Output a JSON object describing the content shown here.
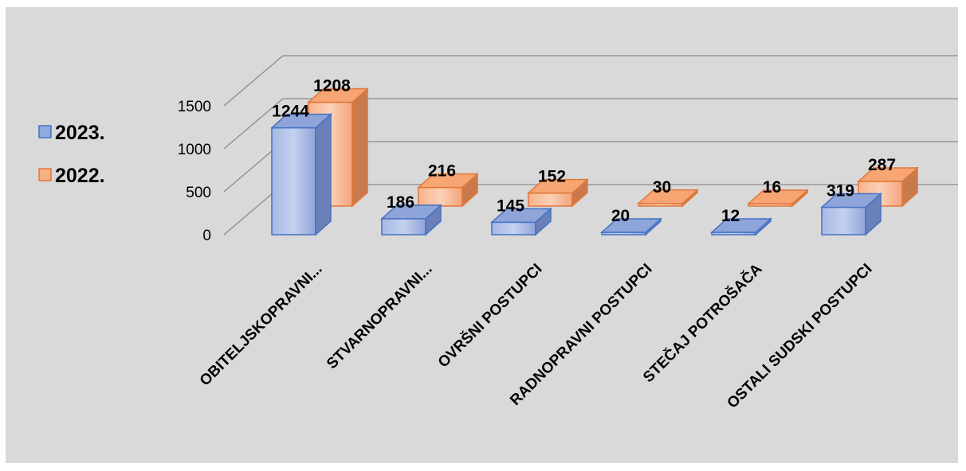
{
  "chart_data": {
    "type": "bar",
    "subtype": "3d-clustered-column",
    "categories": [
      "OBITELJSKOPRAVNI...",
      "STVARNOPRAVNI...",
      "OVRŠNI POSTUPCI",
      "RADNOPRAVNI POSTUPCI",
      "STEČAJ POTROŠAČA",
      "OSTALI SUDSKI POSTUPCI"
    ],
    "series": [
      {
        "name": "2023.",
        "values": [
          1244,
          186,
          145,
          20,
          12,
          319
        ],
        "color": "#8faadc"
      },
      {
        "name": "2022.",
        "values": [
          1208,
          216,
          152,
          30,
          16,
          287
        ],
        "color": "#f4b183"
      }
    ],
    "yticks": [
      "0",
      "500",
      "1000",
      "1500"
    ],
    "ylim": [
      0,
      1500
    ],
    "grid": true,
    "legend": "left",
    "data_labels": true,
    "background": "#d9d9d9"
  }
}
